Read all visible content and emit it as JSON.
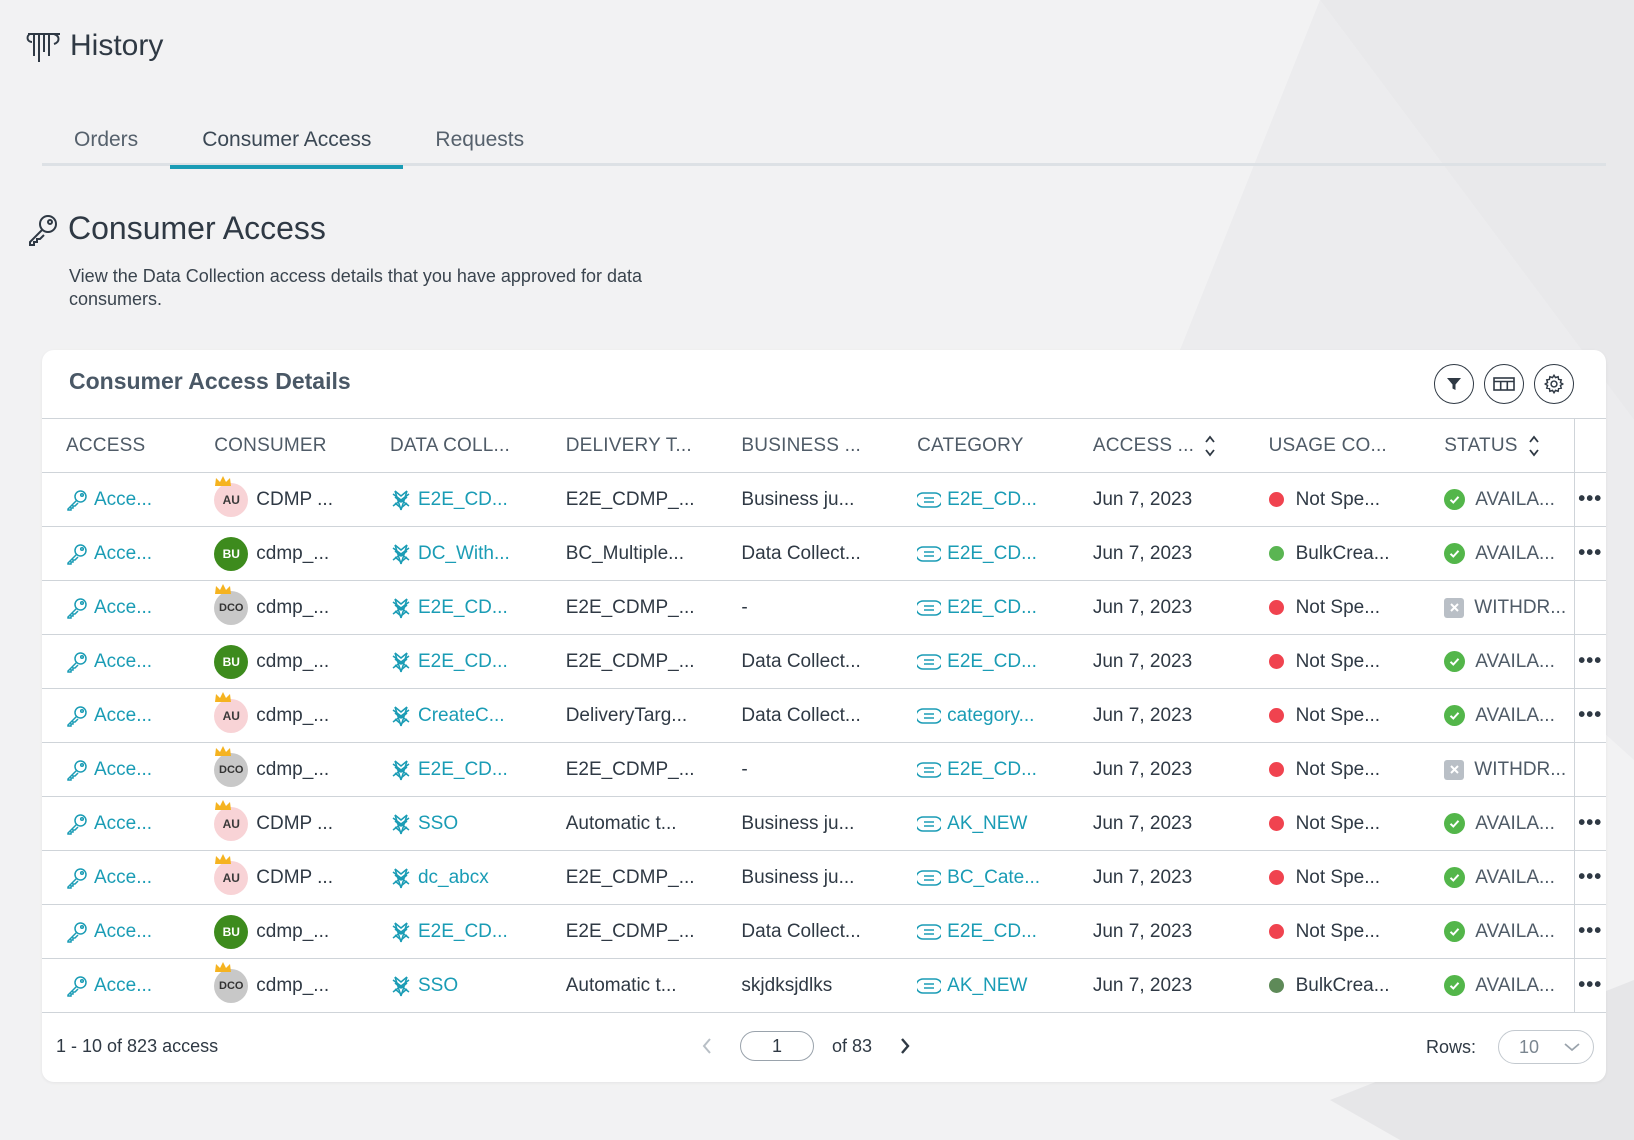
{
  "page": {
    "title": "History"
  },
  "tabs": [
    {
      "label": "Orders",
      "active": false
    },
    {
      "label": "Consumer Access",
      "active": true
    },
    {
      "label": "Requests",
      "active": false
    }
  ],
  "section": {
    "title": "Consumer Access",
    "description": "View the Data Collection access details that you have approved for data consumers."
  },
  "card": {
    "title": "Consumer Access Details"
  },
  "columns": [
    "ACCESS",
    "CONSUMER",
    "DATA COLL...",
    "DELIVERY T...",
    "BUSINESS ...",
    "CATEGORY",
    "ACCESS ...",
    "USAGE CO...",
    "STATUS"
  ],
  "rows": [
    {
      "access": "Acce...",
      "avatar": "AU",
      "consumer": "CDMP ...",
      "data_collection": "E2E_CD...",
      "delivery": "E2E_CDMP_...",
      "business": "Business ju...",
      "category": "E2E_CD...",
      "date": "Jun 7, 2023",
      "usage": "Not Spe...",
      "usage_color": "#f0434f",
      "status": "AVAILA...",
      "status_type": "avail",
      "more": "•••"
    },
    {
      "access": "Acce...",
      "avatar": "BU",
      "consumer": "cdmp_...",
      "data_collection": "DC_With...",
      "delivery": "BC_Multiple...",
      "business": "Data Collect...",
      "category": "E2E_CD...",
      "date": "Jun 7, 2023",
      "usage": "BulkCrea...",
      "usage_color": "#5ab552",
      "status": "AVAILA...",
      "status_type": "avail",
      "more": "•••"
    },
    {
      "access": "Acce...",
      "avatar": "DCO",
      "consumer": "cdmp_...",
      "data_collection": "E2E_CD...",
      "delivery": "E2E_CDMP_...",
      "business": "-",
      "category": "E2E_CD...",
      "date": "Jun 7, 2023",
      "usage": "Not Spe...",
      "usage_color": "#f0434f",
      "status": "WITHDR...",
      "status_type": "withdr",
      "more": ""
    },
    {
      "access": "Acce...",
      "avatar": "BU",
      "consumer": "cdmp_...",
      "data_collection": "E2E_CD...",
      "delivery": "E2E_CDMP_...",
      "business": "Data Collect...",
      "category": "E2E_CD...",
      "date": "Jun 7, 2023",
      "usage": "Not Spe...",
      "usage_color": "#f0434f",
      "status": "AVAILA...",
      "status_type": "avail",
      "more": "•••"
    },
    {
      "access": "Acce...",
      "avatar": "AU",
      "consumer": "cdmp_...",
      "data_collection": "CreateC...",
      "delivery": "DeliveryTarg...",
      "business": "Data Collect...",
      "category": "category...",
      "date": "Jun 7, 2023",
      "usage": "Not Spe...",
      "usage_color": "#f0434f",
      "status": "AVAILA...",
      "status_type": "avail",
      "more": "•••"
    },
    {
      "access": "Acce...",
      "avatar": "DCO",
      "consumer": "cdmp_...",
      "data_collection": "E2E_CD...",
      "delivery": "E2E_CDMP_...",
      "business": "-",
      "category": "E2E_CD...",
      "date": "Jun 7, 2023",
      "usage": "Not Spe...",
      "usage_color": "#f0434f",
      "status": "WITHDR...",
      "status_type": "withdr",
      "more": ""
    },
    {
      "access": "Acce...",
      "avatar": "AU",
      "consumer": "CDMP ...",
      "data_collection": "SSO",
      "delivery": "Automatic t...",
      "business": "Business ju...",
      "category": "AK_NEW",
      "date": "Jun 7, 2023",
      "usage": "Not Spe...",
      "usage_color": "#f0434f",
      "status": "AVAILA...",
      "status_type": "avail",
      "more": "•••"
    },
    {
      "access": "Acce...",
      "avatar": "AU",
      "consumer": "CDMP ...",
      "data_collection": "dc_abcx",
      "delivery": "E2E_CDMP_...",
      "business": "Business ju...",
      "category": "BC_Cate...",
      "date": "Jun 7, 2023",
      "usage": "Not Spe...",
      "usage_color": "#f0434f",
      "status": "AVAILA...",
      "status_type": "avail",
      "more": "•••"
    },
    {
      "access": "Acce...",
      "avatar": "BU",
      "consumer": "cdmp_...",
      "data_collection": "E2E_CD...",
      "delivery": "E2E_CDMP_...",
      "business": "Data Collect...",
      "category": "E2E_CD...",
      "date": "Jun 7, 2023",
      "usage": "Not Spe...",
      "usage_color": "#f0434f",
      "status": "AVAILA...",
      "status_type": "avail",
      "more": "•••"
    },
    {
      "access": "Acce...",
      "avatar": "DCO",
      "consumer": "cdmp_...",
      "data_collection": "SSO",
      "delivery": "Automatic t...",
      "business": "skjdksjdlks",
      "category": "AK_NEW",
      "date": "Jun 7, 2023",
      "usage": "BulkCrea...",
      "usage_color": "#5e8a58",
      "status": "AVAILA...",
      "status_type": "avail",
      "more": "•••"
    }
  ],
  "footer": {
    "count_text": "1 - 10 of 823 access",
    "page_value": "1",
    "of_text": "of 83",
    "rows_label": "Rows:",
    "rows_value": "10"
  },
  "colors": {
    "accent": "#1a9cb5",
    "available": "#53b64a",
    "not_specified": "#f0434f"
  },
  "icons": {
    "header": "history-logo-icon",
    "section": "key-icon",
    "filter": "filter-icon",
    "columns": "columns-icon",
    "settings": "gear-icon"
  }
}
